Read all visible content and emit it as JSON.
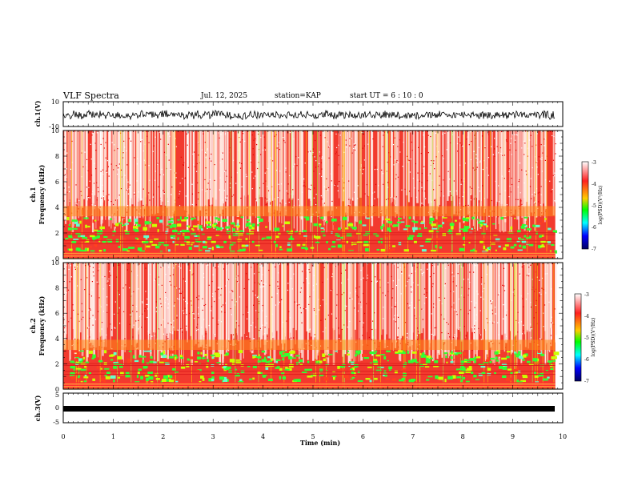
{
  "header": {
    "title": "VLF Spectra",
    "date": "Jul. 12, 2025",
    "station": "station=KAP",
    "start": "start UT =  6 : 10 : 0"
  },
  "chart_data": [
    {
      "type": "line",
      "id": "ch1-waveform",
      "ylabel": "ch.1(V)",
      "ylim": [
        -10,
        10
      ],
      "ytick_labels": [
        "10",
        "-10"
      ],
      "xlim": [
        0,
        10
      ],
      "x_end_data": 9.85
    },
    {
      "type": "heatmap",
      "id": "ch1-spectrogram",
      "ylabel": "ch.1 Frequency (kHz)",
      "ylim": [
        0,
        10
      ],
      "yticks": [
        0,
        2,
        4,
        6,
        8,
        10
      ],
      "ytick_labels": [
        "0",
        "2",
        "4",
        "6",
        "8",
        "10"
      ],
      "xlim": [
        0,
        10
      ],
      "x_end_data": 9.85,
      "colorbar": {
        "label": "log(PSD)(V²/Hz)",
        "range": [
          -7,
          -3
        ],
        "tick_labels": [
          "-3",
          "-4",
          "-5",
          "-6",
          "-7"
        ]
      }
    },
    {
      "type": "heatmap",
      "id": "ch2-spectrogram",
      "ylabel": "ch.2 Frequency (kHz)",
      "ylim": [
        0,
        10
      ],
      "yticks": [
        0,
        2,
        4,
        6,
        8,
        10
      ],
      "ytick_labels": [
        "0",
        "2",
        "4",
        "6",
        "8",
        "10"
      ],
      "xlim": [
        0,
        10
      ],
      "x_end_data": 9.85,
      "colorbar": {
        "label": "log(PSD)(V²/Hz)",
        "range": [
          -7,
          -3
        ],
        "tick_labels": [
          "-3",
          "-4",
          "-5",
          "-6",
          "-7"
        ]
      }
    },
    {
      "type": "line",
      "id": "ch3-waveform",
      "ylabel": "ch.3(V)",
      "ylim": [
        -5,
        5
      ],
      "ytick_labels": [
        "5",
        "0",
        "-5"
      ],
      "xlim": [
        0,
        10
      ],
      "x_end_data": 9.85
    }
  ],
  "xaxis": {
    "label": "Time (min)",
    "ticks": [
      0,
      1,
      2,
      3,
      4,
      5,
      6,
      7,
      8,
      9,
      10
    ],
    "tick_labels": [
      "0",
      "1",
      "2",
      "3",
      "4",
      "5",
      "6",
      "7",
      "8",
      "9",
      "10"
    ]
  },
  "colors": {
    "scale": [
      "#ffffff",
      "#ff0000",
      "#ffff00",
      "#00ff00",
      "#00ffff",
      "#0000ff",
      "#000080"
    ],
    "line": "#000000"
  }
}
